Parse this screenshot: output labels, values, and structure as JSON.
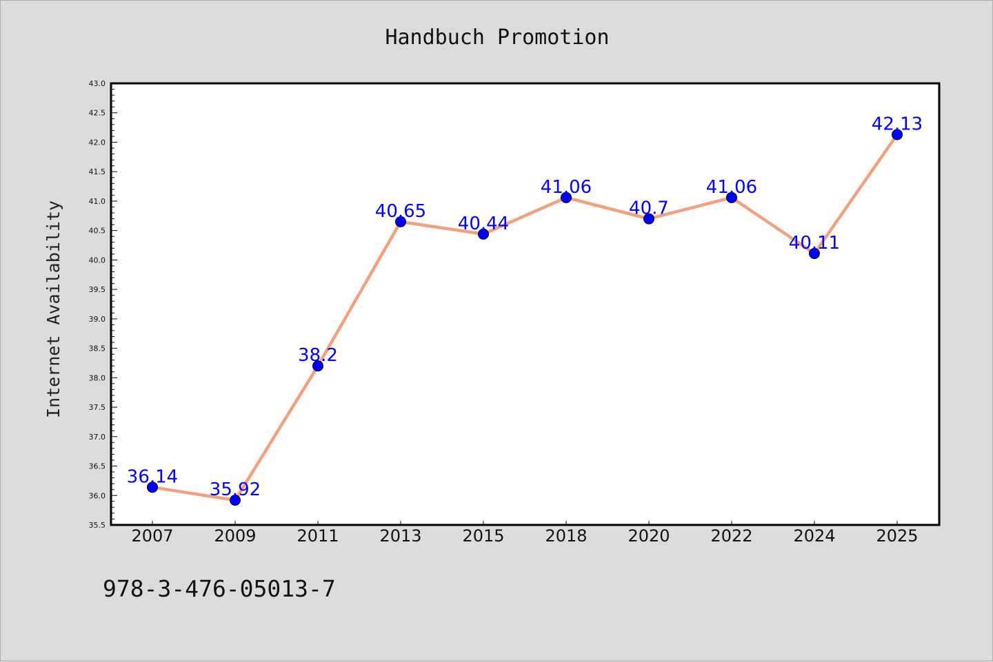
{
  "chart_data": {
    "type": "line",
    "title": "Handbuch Promotion",
    "xlabel": "",
    "ylabel": "Internet Availability",
    "categories": [
      "2007",
      "2009",
      "2011",
      "2013",
      "2015",
      "2018",
      "2020",
      "2022",
      "2024",
      "2025"
    ],
    "series": [
      {
        "values": [
          36.14,
          35.92,
          38.2,
          40.65,
          40.44,
          41.06,
          40.7,
          41.06,
          40.11,
          42.13
        ],
        "labels": [
          "36.14",
          "35.92",
          "38.2",
          "40.65",
          "40.44",
          "41.06",
          "40.7",
          "41.06",
          "40.11",
          "42.13"
        ],
        "line_color": "#f4a07f",
        "marker_color": "#0000ff"
      }
    ],
    "ylim": [
      35.5,
      43.0
    ],
    "yticks": [
      "35.5",
      "36.0",
      "36.5",
      "37.0",
      "37.5",
      "38.0",
      "38.5",
      "39.0",
      "39.5",
      "40.0",
      "40.5",
      "41.0",
      "41.5",
      "42.0",
      "42.5",
      "43.0"
    ],
    "grid": false,
    "legend": "none"
  },
  "footer_text": "978-3-476-05013-7",
  "colors": {
    "background": "#dcdcdc",
    "plot_area": "#ffffff",
    "line": "#f4a07f",
    "marker": "#0000ff",
    "data_label": "#0000ff"
  }
}
